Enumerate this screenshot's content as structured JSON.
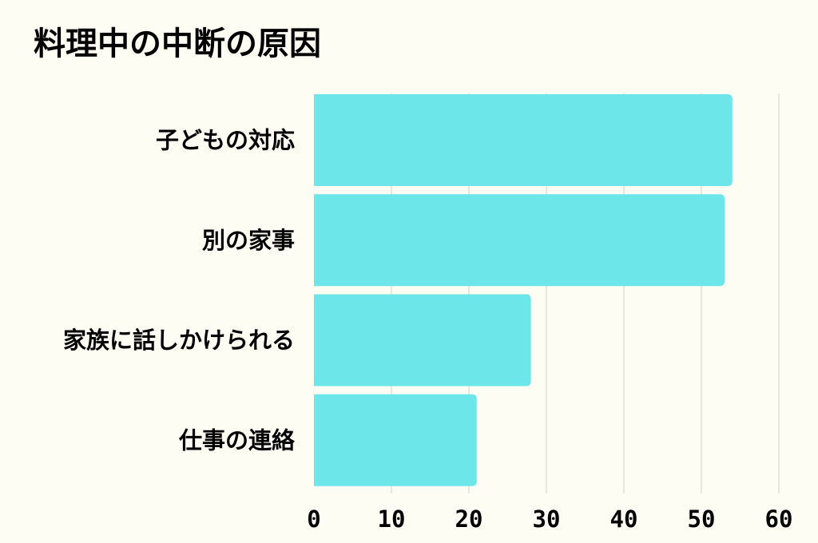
{
  "chart_data": {
    "type": "bar",
    "orientation": "horizontal",
    "title": "料理中の中断の原因",
    "categories": [
      "子どもの対応",
      "別の家事",
      "家族に話しかけられる",
      "仕事の連絡"
    ],
    "values": [
      54,
      53,
      28,
      21
    ],
    "xlim": [
      0,
      60
    ],
    "xticks": [
      "0",
      "10",
      "20",
      "30",
      "40",
      "50",
      "60"
    ],
    "grid": "vertical",
    "legend": "none",
    "bar_color": "#6ce6e9"
  }
}
